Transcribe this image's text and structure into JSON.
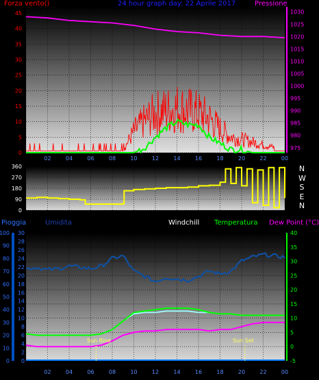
{
  "header": {
    "wind_label": "Forza vento()",
    "title": "24 hour graph day: 22 Aprile 2017",
    "pressure_label": "Pressione"
  },
  "compass": [
    "N",
    "W",
    "S",
    "E",
    "N"
  ],
  "bottom_header": {
    "rain": "Pioggia",
    "humidity": "Umidita",
    "windchill": "Windchill",
    "temperature": "Temperatura",
    "dewpoint": "Dew Point (°C)"
  },
  "annotations": {
    "sunrise": "Sun Rise",
    "sunset": "Sun Set"
  },
  "colors": {
    "wind": "#ff0000",
    "gust": "#ff0000",
    "wind_avg": "#00ff00",
    "pressure": "#ff00ff",
    "direction": "#ffff00",
    "humidity": "#1050a0",
    "temperature": "#00ff00",
    "windchill": "#a0ffff",
    "dewpoint": "#ff00ff",
    "rain": "#0080ff"
  },
  "chart_data": [
    {
      "type": "line",
      "title": "24 hour graph day: 22 Aprile 2017",
      "x_ticks": [
        "02",
        "04",
        "06",
        "08",
        "10",
        "12",
        "14",
        "16",
        "18",
        "20",
        "22",
        "00"
      ],
      "y_left_label": "Forza vento()",
      "y_left_ticks": [
        "0",
        "5",
        "10",
        "15",
        "20",
        "25",
        "30",
        "35",
        "40",
        "45"
      ],
      "ylim_left": [
        0,
        47
      ],
      "y_right_label": "Pressione",
      "y_right_ticks": [
        "975",
        "980",
        "985",
        "990",
        "995",
        "1000",
        "1005",
        "1010",
        "1015",
        "1020",
        "1025",
        "1030"
      ],
      "ylim_right": [
        973,
        1032
      ],
      "series": [
        {
          "axis": "right",
          "x": [
            0,
            2,
            4,
            6,
            8,
            10,
            12,
            14,
            16,
            18,
            20,
            22,
            24
          ],
          "values": [
            1028,
            1027.5,
            1026.5,
            1026,
            1025.5,
            1024.5,
            1023,
            1022,
            1021.5,
            1020.5,
            1020,
            1020,
            1019.5
          ]
        },
        {
          "axis": "left",
          "x": [
            0,
            1,
            2,
            3,
            4,
            5,
            6,
            7,
            8,
            9,
            10,
            11,
            12,
            13,
            14,
            15,
            16,
            17,
            18,
            19,
            20,
            21,
            22,
            23,
            24
          ],
          "values": [
            1,
            1,
            1,
            1,
            1,
            1,
            1,
            1,
            1,
            1,
            8,
            12,
            15,
            16,
            17,
            16,
            15,
            13,
            9,
            6,
            5,
            4,
            3,
            2,
            2
          ]
        },
        {
          "axis": "left",
          "x": [
            0,
            1,
            2,
            3,
            4,
            5,
            6,
            7,
            8,
            9,
            10,
            11,
            12,
            13,
            14,
            15,
            16,
            17,
            18,
            19,
            20,
            21,
            22,
            23,
            24
          ],
          "values": [
            0,
            0,
            0,
            0,
            0,
            0,
            0,
            0,
            0,
            0,
            0,
            1.5,
            5,
            8,
            10,
            9,
            9,
            5,
            3,
            1,
            1,
            0,
            0,
            0,
            0
          ]
        }
      ]
    },
    {
      "type": "line",
      "x_ticks": [
        "02",
        "04",
        "06",
        "08",
        "10",
        "12",
        "14",
        "16",
        "18",
        "20",
        "22",
        "00"
      ],
      "y_ticks": [
        "0",
        "90",
        "180",
        "270",
        "360"
      ],
      "ylim": [
        0,
        360
      ],
      "series": [
        {
          "x": [
            0,
            1,
            2,
            3,
            4,
            5,
            5.5,
            6,
            7,
            8,
            9,
            9.1,
            10,
            11,
            12,
            13,
            14,
            15,
            16,
            17,
            18,
            18.5,
            19,
            19.5,
            20,
            20.5,
            21,
            21.5,
            22,
            22.5,
            23,
            23.5,
            24
          ],
          "values": [
            100,
            105,
            100,
            95,
            90,
            85,
            50,
            50,
            50,
            50,
            55,
            160,
            170,
            175,
            180,
            185,
            185,
            190,
            200,
            205,
            230,
            340,
            220,
            350,
            200,
            340,
            60,
            330,
            40,
            350,
            20,
            350,
            100
          ]
        }
      ]
    },
    {
      "type": "line",
      "x_ticks": [
        "02",
        "04",
        "06",
        "08",
        "10",
        "12",
        "14",
        "16",
        "18",
        "20",
        "22",
        "00"
      ],
      "y_far_left_ticks": [
        "0",
        "10",
        "20",
        "30",
        "40",
        "50",
        "60",
        "70",
        "80",
        "90",
        "100"
      ],
      "y_left_ticks": [
        "0",
        "2",
        "4",
        "6",
        "8",
        "10",
        "12",
        "14",
        "16",
        "18",
        "20",
        "22",
        "24",
        "26",
        "28",
        "30"
      ],
      "y_right_ticks": [
        "-5",
        "0",
        "5",
        "10",
        "15",
        "20",
        "25",
        "30",
        "35",
        "40"
      ],
      "ylim_right": [
        -5,
        40
      ],
      "series": [
        {
          "name": "Umidita",
          "axis": "far_left",
          "x": [
            0,
            1,
            2,
            3,
            4,
            5,
            6,
            7,
            8,
            9,
            10,
            11,
            12,
            13,
            14,
            15,
            16,
            17,
            18,
            19,
            20,
            21,
            22,
            23,
            24
          ],
          "values": [
            72,
            73,
            71,
            72,
            74,
            73,
            72,
            74,
            80,
            82,
            70,
            66,
            62,
            65,
            64,
            63,
            66,
            70,
            68,
            70,
            78,
            81,
            83,
            82,
            81
          ]
        },
        {
          "name": "Temperatura",
          "axis": "right",
          "x": [
            0,
            1,
            2,
            3,
            4,
            5,
            6,
            7,
            8,
            9,
            10,
            11,
            12,
            13,
            14,
            15,
            16,
            17,
            18,
            19,
            20,
            21,
            22,
            23,
            24
          ],
          "values": [
            4.5,
            4,
            4,
            4,
            4,
            4,
            4,
            4.5,
            6,
            9,
            12,
            12.5,
            13,
            13.5,
            13.5,
            13.5,
            13,
            12,
            11.5,
            11.5,
            11,
            11,
            11,
            11,
            11
          ]
        },
        {
          "name": "Windchill",
          "axis": "right",
          "x": [
            0,
            1,
            2,
            3,
            4,
            5,
            6,
            7,
            8,
            9,
            10,
            11,
            12,
            13,
            14,
            15,
            16,
            17,
            18,
            19,
            20,
            21,
            22,
            23,
            24
          ],
          "values": [
            4.5,
            4,
            4,
            4,
            4,
            4,
            4,
            4.5,
            6,
            9,
            11.5,
            12,
            12,
            12.5,
            12.5,
            12.5,
            12,
            12,
            11.5,
            11.5,
            11,
            11,
            11,
            11,
            11
          ]
        },
        {
          "name": "Dew Point (°C)",
          "axis": "right",
          "x": [
            0,
            1,
            2,
            3,
            4,
            5,
            6,
            7,
            8,
            9,
            10,
            11,
            12,
            13,
            14,
            15,
            16,
            17,
            18,
            19,
            20,
            21,
            22,
            23,
            24
          ],
          "values": [
            0.5,
            0,
            0,
            0,
            0,
            0,
            0,
            0.5,
            2,
            4,
            5,
            5.5,
            5.5,
            6,
            6,
            6,
            6,
            5.5,
            6,
            6,
            7,
            8,
            8.5,
            8.5,
            8.5
          ]
        },
        {
          "name": "Pioggia",
          "axis": "left",
          "x": [
            0,
            24
          ],
          "values": [
            0,
            0
          ]
        }
      ]
    }
  ]
}
